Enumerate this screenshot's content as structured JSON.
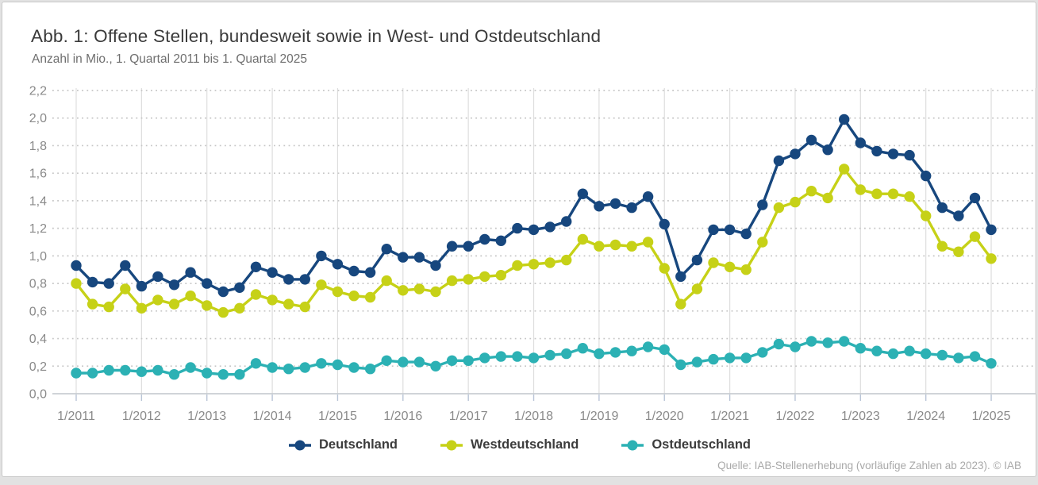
{
  "card": {
    "title": "Abb. 1: Offene Stellen, bundesweit sowie in West- und Ostdeutschland",
    "subtitle": "Anzahl in Mio., 1. Quartal 2011 bis 1. Quartal 2025",
    "source": "Quelle: IAB-Stellenerhebung (vorläufige Zahlen ab 2023). © IAB"
  },
  "colors": {
    "deutschland": "#17477e",
    "westdeutschland": "#c6d117",
    "ostdeutschland": "#2cb1b4",
    "grid_vertical": "#dedede",
    "grid_dotted": "#c6c6c6",
    "axis_line": "#c0c6cc",
    "tick_mark": "#b9c4d6",
    "tick_text": "#8a8a8a",
    "legend_text": "#3c3c3c",
    "source_text": "#a9a9a9"
  },
  "chart_data": {
    "type": "line",
    "title": "Abb. 1: Offene Stellen, bundesweit sowie in West- und Ostdeutschland",
    "subtitle": "Anzahl in Mio., 1. Quartal 2011 bis 1. Quartal 2025",
    "unit": "Mio.",
    "ylim": [
      0,
      2.2
    ],
    "y_step": 0.2,
    "grid": {
      "horizontal": "dotted",
      "vertical": "solid-yearly"
    },
    "legend_position": "bottom",
    "y_tick_labels": [
      "0,0",
      "0,2",
      "0,4",
      "0,6",
      "0,8",
      "1,0",
      "1,2",
      "1,4",
      "1,6",
      "1,8",
      "2,0",
      "2,2"
    ],
    "x_tick_labels": [
      "1/2011",
      "1/2012",
      "1/2013",
      "1/2014",
      "1/2015",
      "1/2016",
      "1/2017",
      "1/2018",
      "1/2019",
      "1/2020",
      "1/2021",
      "1/2022",
      "1/2023",
      "1/2024",
      "1/2025"
    ],
    "x_categories": [
      "1/2011",
      "2/2011",
      "3/2011",
      "4/2011",
      "1/2012",
      "2/2012",
      "3/2012",
      "4/2012",
      "1/2013",
      "2/2013",
      "3/2013",
      "4/2013",
      "1/2014",
      "2/2014",
      "3/2014",
      "4/2014",
      "1/2015",
      "2/2015",
      "3/2015",
      "4/2015",
      "1/2016",
      "2/2016",
      "3/2016",
      "4/2016",
      "1/2017",
      "2/2017",
      "3/2017",
      "4/2017",
      "1/2018",
      "2/2018",
      "3/2018",
      "4/2018",
      "1/2019",
      "2/2019",
      "3/2019",
      "4/2019",
      "1/2020",
      "2/2020",
      "3/2020",
      "4/2020",
      "1/2021",
      "2/2021",
      "3/2021",
      "4/2021",
      "1/2022",
      "2/2022",
      "3/2022",
      "4/2022",
      "1/2023",
      "2/2023",
      "3/2023",
      "4/2023",
      "1/2024",
      "2/2024",
      "3/2024",
      "4/2024",
      "1/2025"
    ],
    "series": [
      {
        "name": "Deutschland",
        "color": "#17477e",
        "values": [
          0.93,
          0.81,
          0.8,
          0.93,
          0.78,
          0.85,
          0.79,
          0.88,
          0.8,
          0.74,
          0.77,
          0.92,
          0.88,
          0.83,
          0.83,
          1.0,
          0.94,
          0.89,
          0.88,
          1.05,
          0.99,
          0.99,
          0.93,
          1.07,
          1.07,
          1.12,
          1.11,
          1.2,
          1.19,
          1.21,
          1.25,
          1.45,
          1.36,
          1.38,
          1.35,
          1.43,
          1.23,
          0.85,
          0.97,
          1.19,
          1.19,
          1.16,
          1.37,
          1.69,
          1.74,
          1.84,
          1.77,
          1.99,
          1.82,
          1.76,
          1.74,
          1.73,
          1.58,
          1.35,
          1.29,
          1.42,
          1.19
        ]
      },
      {
        "name": "Westdeutschland",
        "color": "#c6d117",
        "values": [
          0.8,
          0.65,
          0.63,
          0.76,
          0.62,
          0.68,
          0.65,
          0.71,
          0.64,
          0.59,
          0.62,
          0.72,
          0.68,
          0.65,
          0.63,
          0.79,
          0.74,
          0.71,
          0.7,
          0.82,
          0.75,
          0.76,
          0.74,
          0.82,
          0.83,
          0.85,
          0.86,
          0.93,
          0.94,
          0.95,
          0.97,
          1.12,
          1.07,
          1.08,
          1.07,
          1.1,
          0.91,
          0.65,
          0.76,
          0.95,
          0.92,
          0.9,
          1.1,
          1.35,
          1.39,
          1.47,
          1.42,
          1.63,
          1.48,
          1.45,
          1.45,
          1.43,
          1.29,
          1.07,
          1.03,
          1.14,
          0.98
        ]
      },
      {
        "name": "Ostdeutschland",
        "color": "#2cb1b4",
        "values": [
          0.15,
          0.15,
          0.17,
          0.17,
          0.16,
          0.17,
          0.14,
          0.19,
          0.15,
          0.14,
          0.14,
          0.22,
          0.19,
          0.18,
          0.19,
          0.22,
          0.21,
          0.19,
          0.18,
          0.24,
          0.23,
          0.23,
          0.2,
          0.24,
          0.24,
          0.26,
          0.27,
          0.27,
          0.26,
          0.28,
          0.29,
          0.33,
          0.29,
          0.3,
          0.31,
          0.34,
          0.32,
          0.21,
          0.23,
          0.25,
          0.26,
          0.26,
          0.3,
          0.36,
          0.34,
          0.38,
          0.37,
          0.38,
          0.33,
          0.31,
          0.29,
          0.31,
          0.29,
          0.28,
          0.26,
          0.27,
          0.22
        ]
      }
    ]
  }
}
